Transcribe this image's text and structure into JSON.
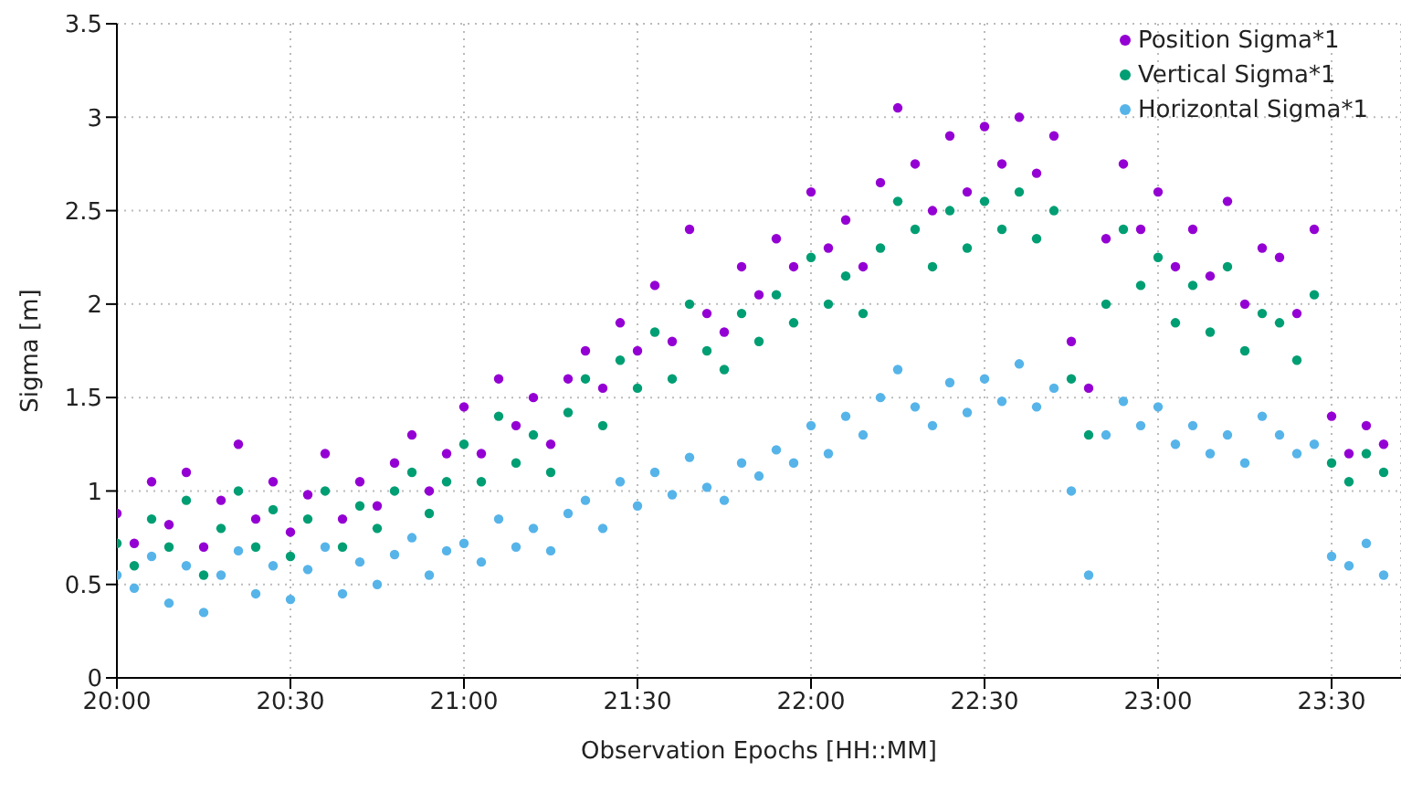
{
  "chart_data": {
    "type": "scatter",
    "xlabel": "Observation Epochs [HH::MM]",
    "ylabel": "Sigma [m]",
    "x": [
      20,
      20.05,
      20.1,
      20.15,
      20.2,
      20.25,
      20.3,
      20.35,
      20.4,
      20.45,
      20.5,
      20.55,
      20.6,
      20.65,
      20.7,
      20.75,
      20.8,
      20.85,
      20.9,
      20.95,
      21,
      21.05,
      21.1,
      21.15,
      21.2,
      21.25,
      21.3,
      21.35,
      21.4,
      21.45,
      21.5,
      21.55,
      21.6,
      21.65,
      21.7,
      21.75,
      21.8,
      21.85,
      21.9,
      21.95,
      22,
      22.05,
      22.1,
      22.15,
      22.2,
      22.25,
      22.3,
      22.35,
      22.4,
      22.45,
      22.5,
      22.55,
      22.6,
      22.65,
      22.7,
      22.75,
      22.8,
      22.85,
      22.9,
      22.95,
      23,
      23.05,
      23.1,
      23.15,
      23.2,
      23.25,
      23.3,
      23.35,
      23.4,
      23.45,
      23.5,
      23.55,
      23.6,
      23.65
    ],
    "series": [
      {
        "name": "Position Sigma*1",
        "color": "#9400d3",
        "values": [
          0.88,
          0.72,
          1.05,
          0.82,
          1.1,
          0.7,
          0.95,
          1.25,
          0.85,
          1.05,
          0.78,
          0.98,
          1.2,
          0.85,
          1.05,
          0.92,
          1.15,
          1.3,
          1.0,
          1.2,
          1.45,
          1.2,
          1.6,
          1.35,
          1.5,
          1.25,
          1.6,
          1.75,
          1.55,
          1.9,
          1.75,
          2.1,
          1.8,
          2.4,
          1.95,
          1.85,
          2.2,
          2.05,
          2.35,
          2.2,
          2.6,
          2.3,
          2.45,
          2.2,
          2.65,
          3.05,
          2.75,
          2.5,
          2.9,
          2.6,
          2.95,
          2.75,
          3.0,
          2.7,
          2.9,
          1.8,
          1.55,
          2.35,
          2.75,
          2.4,
          2.6,
          2.2,
          2.4,
          2.15,
          2.55,
          2.0,
          2.3,
          2.25,
          1.95,
          2.4,
          1.4,
          1.2,
          1.35,
          1.25
        ]
      },
      {
        "name": "Vertical Sigma*1",
        "color": "#009e73",
        "values": [
          0.72,
          0.6,
          0.85,
          0.7,
          0.95,
          0.55,
          0.8,
          1.0,
          0.7,
          0.9,
          0.65,
          0.85,
          1.0,
          0.7,
          0.92,
          0.8,
          1.0,
          1.1,
          0.88,
          1.05,
          1.25,
          1.05,
          1.4,
          1.15,
          1.3,
          1.1,
          1.42,
          1.6,
          1.35,
          1.7,
          1.55,
          1.85,
          1.6,
          2.0,
          1.75,
          1.65,
          1.95,
          1.8,
          2.05,
          1.9,
          2.25,
          2.0,
          2.15,
          1.95,
          2.3,
          2.55,
          2.4,
          2.2,
          2.5,
          2.3,
          2.55,
          2.4,
          2.6,
          2.35,
          2.5,
          1.6,
          1.3,
          2.0,
          2.4,
          2.1,
          2.25,
          1.9,
          2.1,
          1.85,
          2.2,
          1.75,
          1.95,
          1.9,
          1.7,
          2.05,
          1.15,
          1.05,
          1.2,
          1.1
        ]
      },
      {
        "name": "Horizontal Sigma*1",
        "color": "#56b4e9",
        "values": [
          0.55,
          0.48,
          0.65,
          0.4,
          0.6,
          0.35,
          0.55,
          0.68,
          0.45,
          0.6,
          0.42,
          0.58,
          0.7,
          0.45,
          0.62,
          0.5,
          0.66,
          0.75,
          0.55,
          0.68,
          0.72,
          0.62,
          0.85,
          0.7,
          0.8,
          0.68,
          0.88,
          0.95,
          0.8,
          1.05,
          0.92,
          1.1,
          0.98,
          1.18,
          1.02,
          0.95,
          1.15,
          1.08,
          1.22,
          1.15,
          1.35,
          1.2,
          1.4,
          1.3,
          1.5,
          1.65,
          1.45,
          1.35,
          1.58,
          1.42,
          1.6,
          1.48,
          1.68,
          1.45,
          1.55,
          1.0,
          0.55,
          1.3,
          1.48,
          1.35,
          1.45,
          1.25,
          1.35,
          1.2,
          1.3,
          1.15,
          1.4,
          1.3,
          1.2,
          1.25,
          0.65,
          0.6,
          0.72,
          0.55
        ]
      }
    ],
    "xlim": [
      20,
      23.7
    ],
    "xticks": [
      {
        "value": 20,
        "label": "20:00"
      },
      {
        "value": 20.5,
        "label": "20:30"
      },
      {
        "value": 21,
        "label": "21:00"
      },
      {
        "value": 21.5,
        "label": "21:30"
      },
      {
        "value": 22,
        "label": "22:00"
      },
      {
        "value": 22.5,
        "label": "22:30"
      },
      {
        "value": 23,
        "label": "23:00"
      },
      {
        "value": 23.5,
        "label": "23:30"
      }
    ],
    "ylim": [
      0,
      3.5
    ],
    "yticks": [
      0,
      0.5,
      1,
      1.5,
      2,
      2.5,
      3,
      3.5
    ],
    "grid": true,
    "legend": "top right",
    "marker": "circle"
  }
}
